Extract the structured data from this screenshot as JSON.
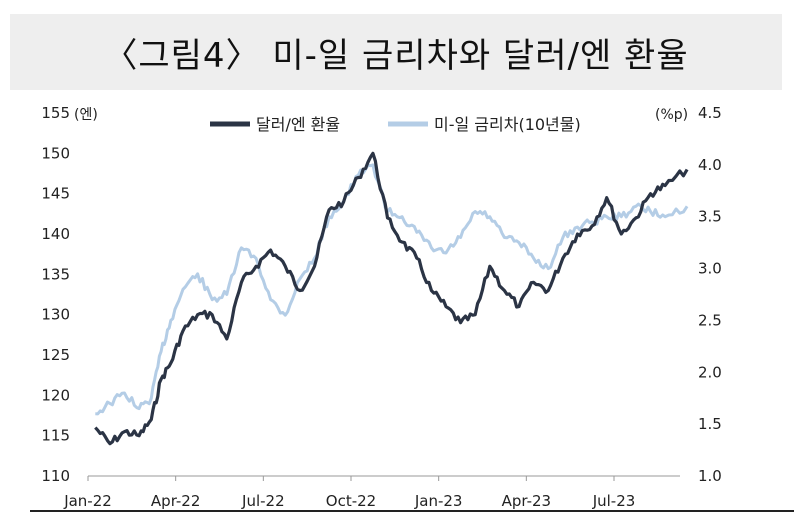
{
  "title": "〈그림4〉 미-일 금리차와 달러/엔 환율",
  "chart_data": {
    "type": "line",
    "title": "〈그림4〉 미-일 금리차와 달러/엔 환율",
    "x_ticks": [
      "Jan-22",
      "Apr-22",
      "Jul-22",
      "Oct-22",
      "Jan-23",
      "Apr-23",
      "Jul-23"
    ],
    "y_left": {
      "unit": "(엔)",
      "range": [
        110,
        155
      ],
      "ticks": [
        "110",
        "115",
        "120",
        "125",
        "130",
        "135",
        "140",
        "145",
        "150",
        "155"
      ]
    },
    "y_right": {
      "unit": "(%p)",
      "range": [
        1.0,
        4.5
      ],
      "ticks": [
        "1.0",
        "1.5",
        "2.0",
        "2.5",
        "3.0",
        "3.5",
        "4.0",
        "4.5"
      ]
    },
    "legend_position": "top-center",
    "grid": false,
    "series": [
      {
        "name": "달러/엔 환율",
        "axis": "left",
        "color": "#2b3445",
        "x": [
          "2022-01",
          "2022-01",
          "2022-02",
          "2022-02",
          "2022-03",
          "2022-03",
          "2022-03",
          "2022-04",
          "2022-04",
          "2022-05",
          "2022-05",
          "2022-06",
          "2022-06",
          "2022-07",
          "2022-07",
          "2022-08",
          "2022-08",
          "2022-09",
          "2022-09",
          "2022-10",
          "2022-10",
          "2022-11",
          "2022-11",
          "2022-12",
          "2022-12",
          "2023-01",
          "2023-01",
          "2023-02",
          "2023-02",
          "2023-03",
          "2023-03",
          "2023-04",
          "2023-04",
          "2023-05",
          "2023-05",
          "2023-06",
          "2023-06",
          "2023-07",
          "2023-07",
          "2023-08",
          "2023-08",
          "2023-09"
        ],
        "y": [
          116,
          114,
          115.5,
          115,
          117,
          122,
          124,
          128,
          130,
          130,
          127,
          134,
          136,
          138,
          136,
          133,
          136,
          143,
          144,
          147,
          150,
          142,
          139,
          137,
          133,
          131,
          129,
          130,
          136,
          133,
          131,
          134,
          133,
          137,
          140,
          141,
          144.5,
          140,
          142,
          145,
          146,
          148
        ],
        "values_are_estimates": true
      },
      {
        "name": "미-일 금리차(10년물)",
        "axis": "right",
        "color": "#b4cde6",
        "x": [
          "2022-01",
          "2022-01",
          "2022-02",
          "2022-02",
          "2022-03",
          "2022-03",
          "2022-03",
          "2022-04",
          "2022-04",
          "2022-05",
          "2022-05",
          "2022-06",
          "2022-06",
          "2022-07",
          "2022-07",
          "2022-08",
          "2022-08",
          "2022-09",
          "2022-09",
          "2022-10",
          "2022-10",
          "2022-11",
          "2022-11",
          "2022-12",
          "2022-12",
          "2023-01",
          "2023-01",
          "2023-02",
          "2023-02",
          "2023-03",
          "2023-03",
          "2023-04",
          "2023-04",
          "2023-05",
          "2023-05",
          "2023-06",
          "2023-06",
          "2023-07",
          "2023-07",
          "2023-08",
          "2023-08",
          "2023-09"
        ],
        "y": [
          1.6,
          1.7,
          1.8,
          1.65,
          1.75,
          2.2,
          2.5,
          2.8,
          2.95,
          2.7,
          2.75,
          3.2,
          3.1,
          2.7,
          2.55,
          2.9,
          3.1,
          3.5,
          3.65,
          3.9,
          4.0,
          3.55,
          3.5,
          3.35,
          3.2,
          3.15,
          3.3,
          3.55,
          3.5,
          3.3,
          3.25,
          3.1,
          3.0,
          3.3,
          3.4,
          3.45,
          3.5,
          3.5,
          3.6,
          3.55,
          3.5,
          3.6
        ],
        "values_are_estimates": true
      }
    ]
  }
}
